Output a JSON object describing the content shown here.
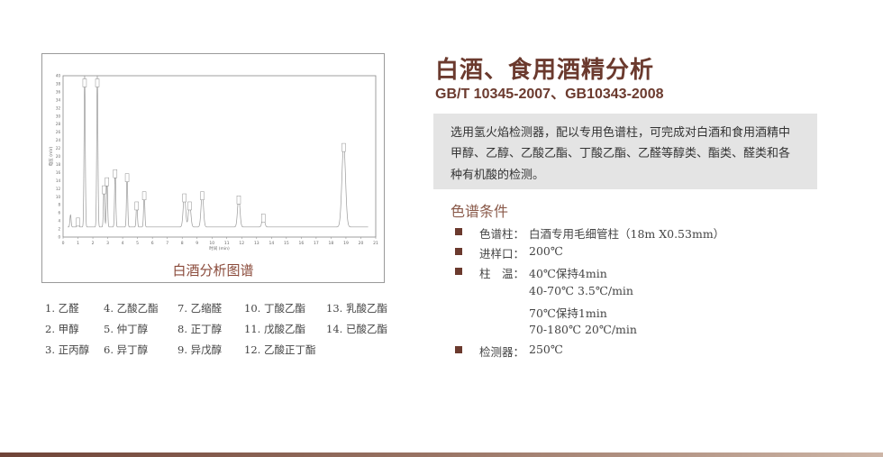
{
  "chart_data": {
    "type": "line",
    "ylabel": "电压 (mV)",
    "xlabel": "时间 (min)",
    "xlim": [
      0,
      21
    ],
    "ylim": [
      0,
      40
    ],
    "xticks": [
      0,
      1,
      2,
      3,
      4,
      5,
      6,
      7,
      8,
      9,
      10,
      11,
      12,
      13,
      14,
      15,
      16,
      17,
      18,
      19,
      20,
      21
    ],
    "yticks": [
      0,
      2,
      4,
      6,
      8,
      10,
      12,
      14,
      16,
      18,
      20,
      22,
      24,
      26,
      28,
      30,
      32,
      34,
      36,
      38,
      40
    ],
    "baseline": 2.5,
    "peaks": [
      {
        "t": 0.5,
        "h": 5.5
      },
      {
        "t": 1.0,
        "h": 4.5
      },
      {
        "t": 1.45,
        "h": 40
      },
      {
        "t": 2.3,
        "h": 40
      },
      {
        "t": 2.75,
        "h": 12.5
      },
      {
        "t": 2.95,
        "h": 14.5
      },
      {
        "t": 3.5,
        "h": 16.5
      },
      {
        "t": 4.3,
        "h": 15.5
      },
      {
        "t": 4.95,
        "h": 8.5
      },
      {
        "t": 5.45,
        "h": 11
      },
      {
        "t": 8.15,
        "h": 10.5
      },
      {
        "t": 8.5,
        "h": 8.5
      },
      {
        "t": 9.35,
        "h": 11
      },
      {
        "t": 11.8,
        "h": 10
      },
      {
        "t": 13.45,
        "h": 5.5
      },
      {
        "t": 18.85,
        "h": 23
      }
    ]
  },
  "chart_caption": "白酒分析图谱",
  "legend": [
    [
      "1. 乙醛",
      "2. 甲醇",
      "3. 正丙醇"
    ],
    [
      "4. 乙酸乙酯",
      "5. 仲丁醇",
      "6. 异丁醇"
    ],
    [
      "7. 乙缩醛",
      "8. 正丁醇",
      "9. 异戊醇"
    ],
    [
      "10. 丁酸乙酯",
      "11. 戊酸乙酯",
      "12. 乙酸正丁酯"
    ],
    [
      "13. 乳酸乙酯",
      "14. 已酸乙酯"
    ]
  ],
  "title": "白酒、食用酒精分析",
  "subtitle": "GB/T 10345-2007、GB10343-2008",
  "description": [
    "选用氢火焰检测器，配以专用色谱柱，可完成对白酒和食用酒精中",
    "甲醇、乙醇、乙酸乙酯、丁酸乙酯、乙醛等醇类、酯类、醛类和各",
    "种有机酸的检测。"
  ],
  "conditions": {
    "title": "色谱条件",
    "column_label": "色谱柱：",
    "column_value": "白酒专用毛细管柱（18m X0.53mm）",
    "inlet_label": "进样口：",
    "inlet_value": "200℃",
    "temp_label": "柱　温：",
    "temp_values": [
      "40℃保持4min",
      "40-70℃ 3.5℃/min",
      "70℃保持1min",
      "70-180℃ 20℃/min"
    ],
    "detector_label": "检测器：",
    "detector_value": "250℃"
  },
  "colors": {
    "accent": "#6b3a2e",
    "box": "#e4e4e4"
  }
}
